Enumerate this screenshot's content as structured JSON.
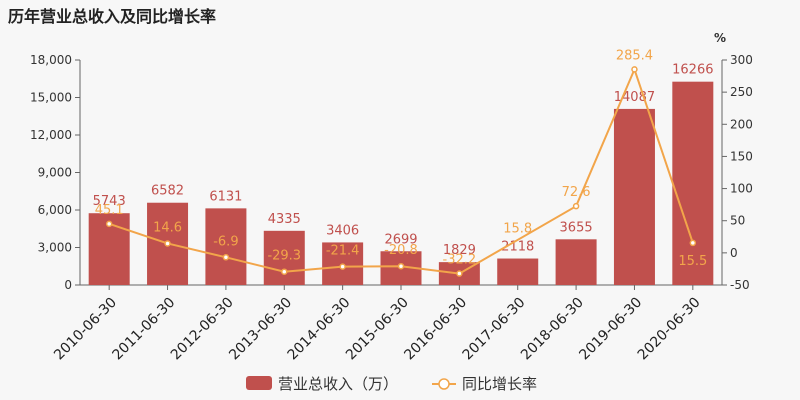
{
  "chart_data": {
    "type": "bar",
    "title": "历年营业总收入及同比增长率",
    "categories": [
      "2010-06-30",
      "2011-06-30",
      "2012-06-30",
      "2013-06-30",
      "2014-06-30",
      "2015-06-30",
      "2016-06-30",
      "2017-06-30",
      "2018-06-30",
      "2019-06-30",
      "2020-06-30"
    ],
    "series": [
      {
        "name": "营业总收入（万）",
        "type": "bar",
        "axis": "left",
        "color": "#c0504d",
        "values": [
          5743,
          6582,
          6131,
          4335,
          3406,
          2699,
          1829,
          2118,
          3655,
          14087,
          16266
        ],
        "labels": [
          "5743",
          "6582",
          "6131",
          "4335",
          "3406",
          "2699",
          "1829",
          "2118",
          "3655",
          "14087",
          "16266"
        ]
      },
      {
        "name": "同比增长率",
        "type": "line",
        "axis": "right",
        "color": "#f2a54a",
        "values": [
          45.1,
          14.6,
          -6.9,
          -29.3,
          -21.4,
          -20.8,
          -32.2,
          null,
          72.6,
          285.4,
          15.5
        ],
        "labels": [
          "45.1",
          "14.6",
          "-6.9",
          "-29.3",
          "-21.4",
          "-20.8",
          "-32.2",
          "15.8",
          "72.6",
          "285.4",
          "15.5"
        ]
      }
    ],
    "y_left": {
      "min": 0,
      "max": 18000,
      "ticks": [
        "0",
        "3,000",
        "6,000",
        "9,000",
        "12,000",
        "15,000",
        "18,000"
      ]
    },
    "y_right": {
      "min": -50,
      "max": 300,
      "unit": "%",
      "ticks": [
        "-50",
        "0",
        "50",
        "100",
        "150",
        "200",
        "250",
        "300"
      ]
    },
    "legend_position": "bottom",
    "grid": false
  }
}
